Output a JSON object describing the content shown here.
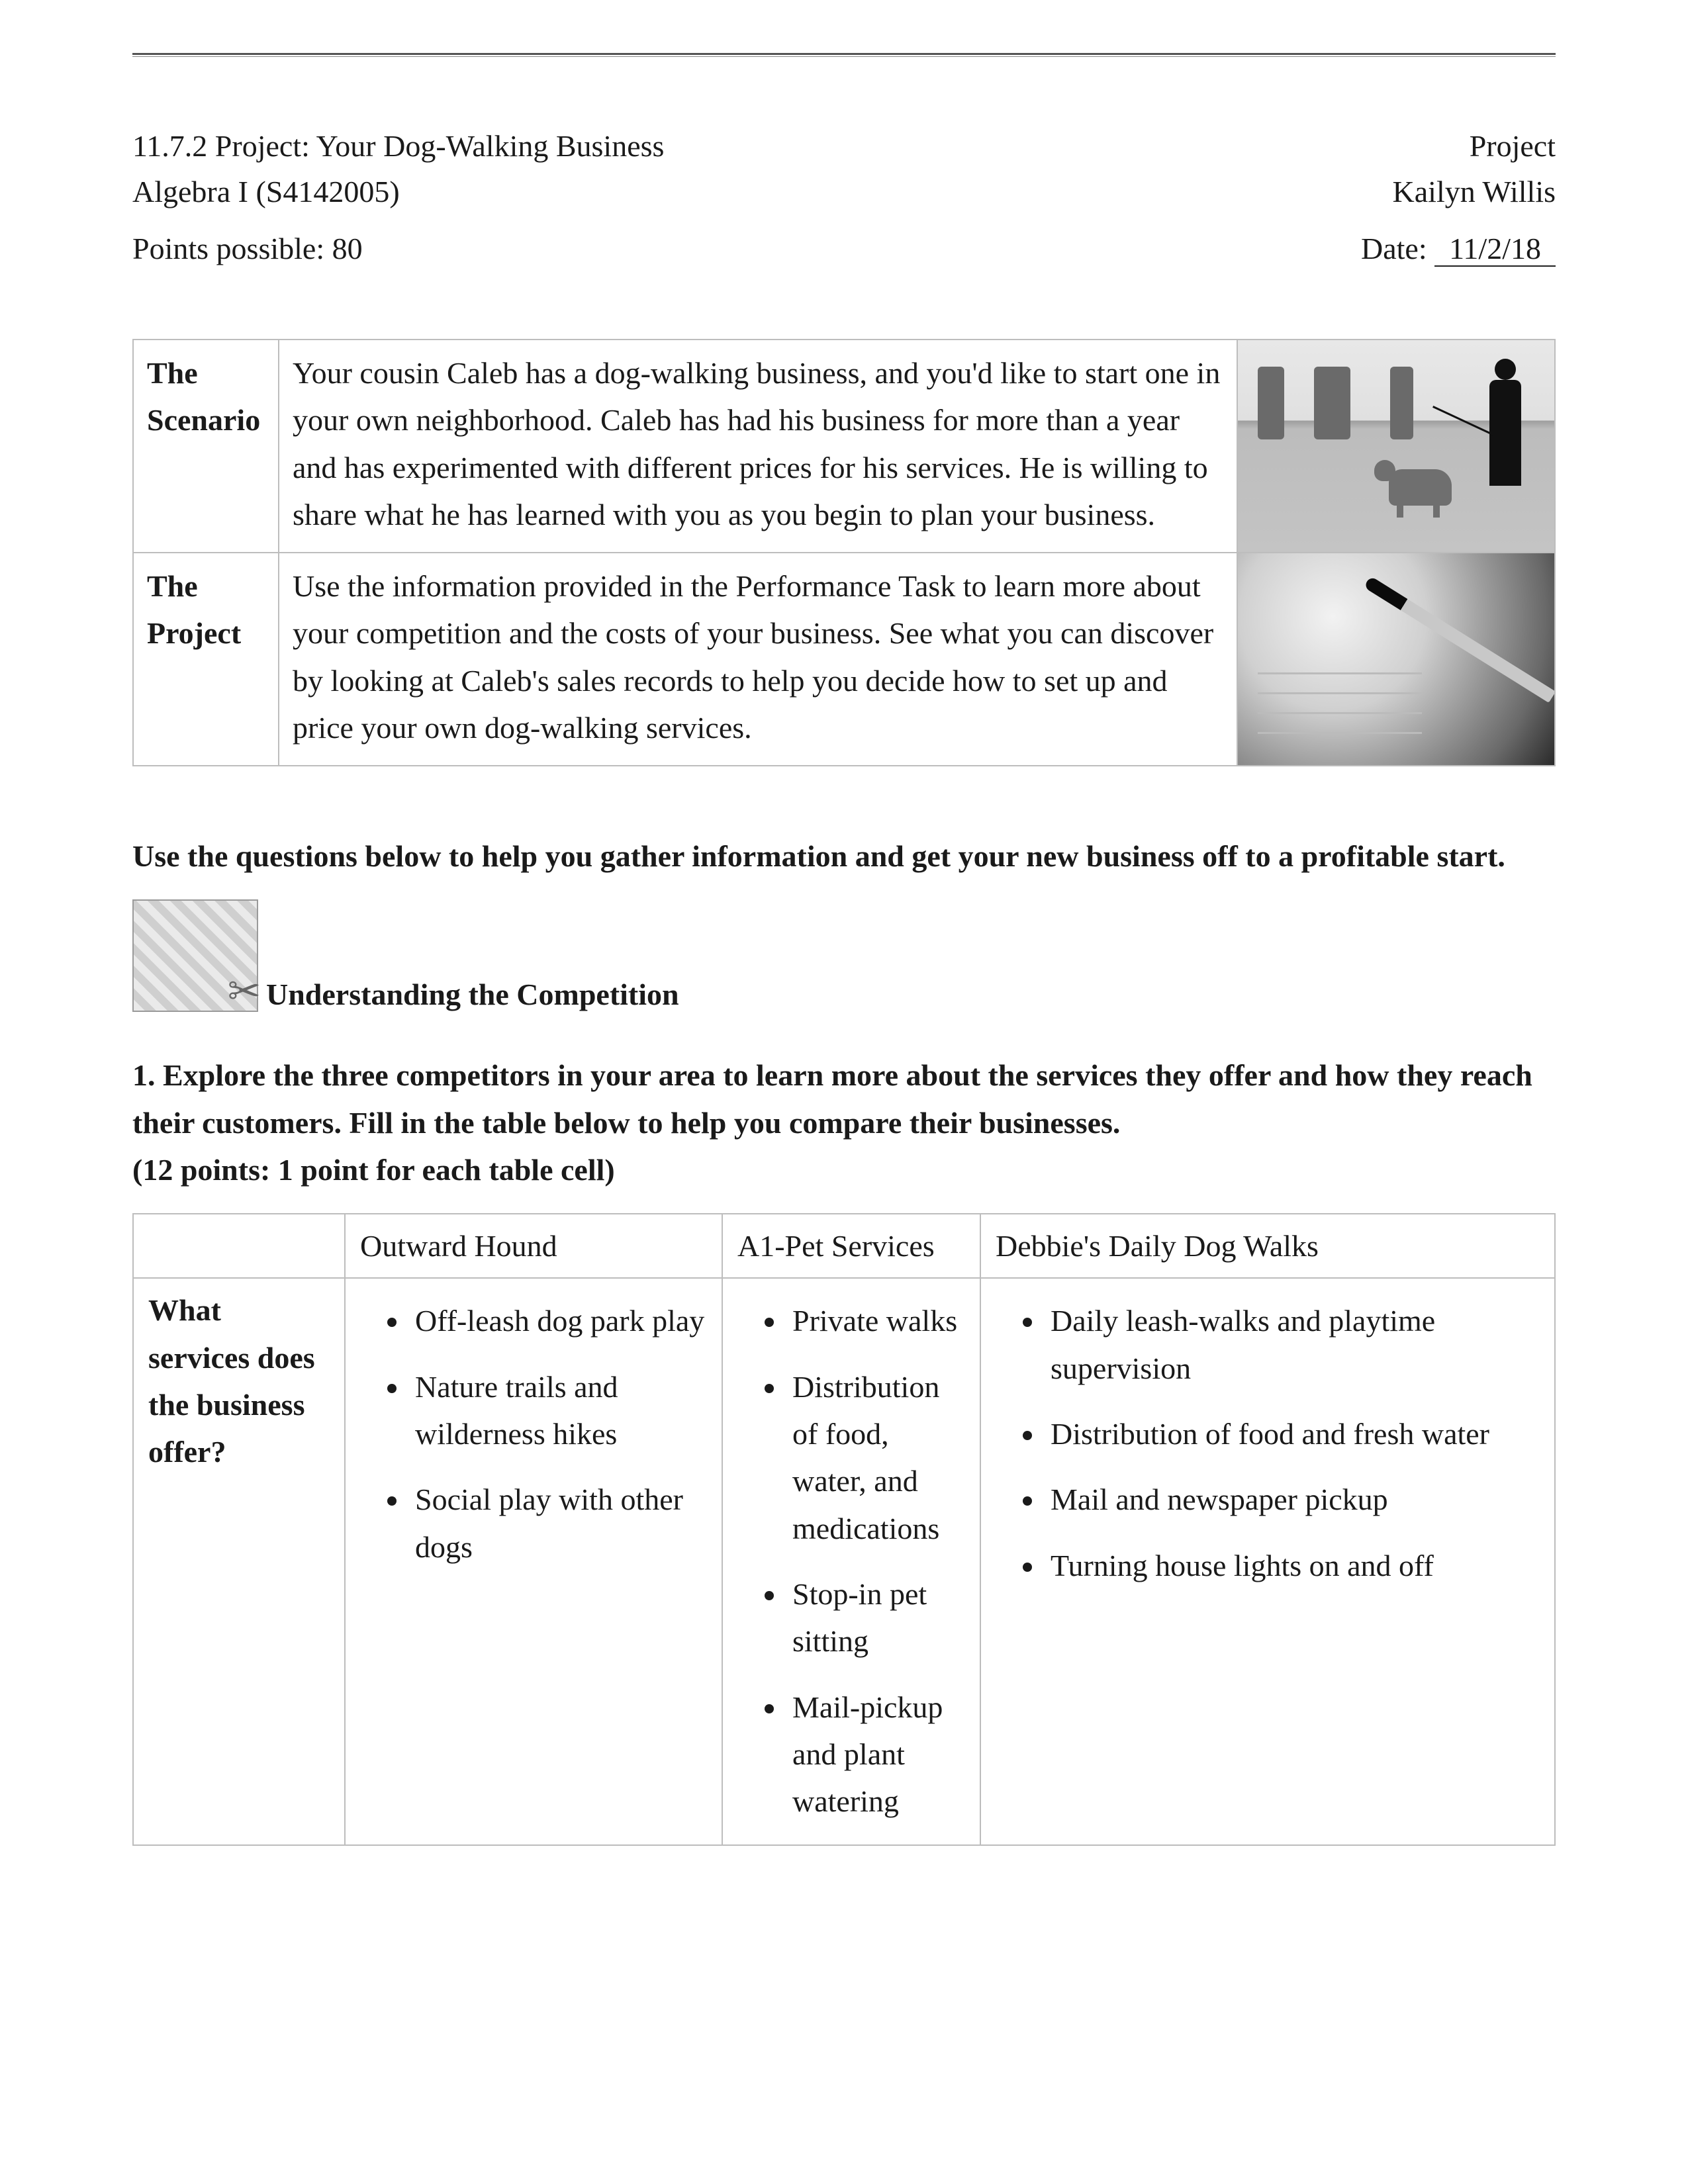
{
  "header": {
    "project_line": "11.7.2 Project: Your Dog-Walking Business",
    "project_label_right": "Project",
    "course": "Algebra I (S4142005)",
    "student_name": "Kailyn Willis",
    "points_possible_label": "Points possible: 80",
    "date_label": "Date:",
    "date_value": "11/2/18"
  },
  "scenario_table": {
    "rows": [
      {
        "label": "The Scenario",
        "text": "Your cousin Caleb has a dog-walking business, and you'd like to start one in your own neighborhood. Caleb has had his business for more than a year and has experimented with different prices for his services. He is willing to share what he has learned with you as you begin to plan your business."
      },
      {
        "label": "The Project",
        "text": "Use the information provided in the Performance Task to learn more about your competition and the costs of your business. See what you can discover by looking at Caleb's sales records to help you decide how to set up and price your own dog-walking services."
      }
    ]
  },
  "instructions": "Use the questions below to help you gather information and get your new business off to a profitable start.",
  "section": {
    "title": "Understanding the Competition"
  },
  "question1": {
    "text": "1. Explore the three competitors in your area to learn more about the services they offer and how they reach their customers. Fill in the table below to help you compare their businesses.",
    "points": "(12 points: 1 point for each table cell)"
  },
  "competitors": {
    "row_label": "What services does the business offer?",
    "columns": [
      {
        "name": "Outward Hound",
        "services": [
          "Off-leash dog park play",
          "Nature trails and wilderness hikes",
          "Social play with other dogs"
        ]
      },
      {
        "name": "A1-Pet Services",
        "services": [
          "Private walks",
          "Distribution of food, water, and medications",
          "Stop-in pet sitting",
          "Mail-pickup and plant watering"
        ]
      },
      {
        "name": "Debbie's Daily Dog Walks",
        "services": [
          "Daily leash-walks and playtime supervision",
          "Distribution of food and fresh water",
          "Mail and newspaper pickup",
          "Turning house lights on and off"
        ]
      }
    ]
  }
}
